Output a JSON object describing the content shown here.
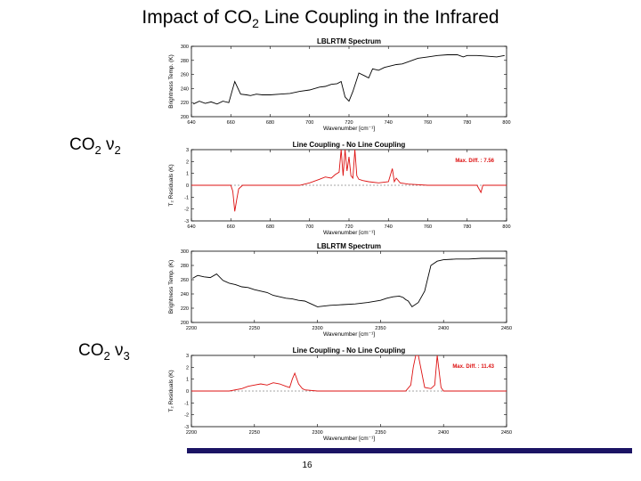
{
  "slide": {
    "title_main": "Impact of CO",
    "title_sub": "2",
    "title_rest": " Line Coupling in the Infrared",
    "label_nu2_main": "CO",
    "label_nu2_sub1": "2",
    "label_nu2_nu": " ν",
    "label_nu2_sub2": "2",
    "label_nu3_main": "CO",
    "label_nu3_sub1": "2",
    "label_nu3_nu": " ν",
    "label_nu3_sub2": "3",
    "page_number": "16"
  },
  "colors": {
    "spectrum": "#000000",
    "residual": "#dd1111",
    "zero_line": "#888888",
    "bar": "#1b1464"
  },
  "chart_data": [
    {
      "type": "line",
      "title": "LBLRTM Spectrum",
      "xlabel": "Wavenumber [cm⁻¹]",
      "ylabel": "Brightness Temp. (K)",
      "xlim": [
        640,
        800
      ],
      "ylim": [
        200,
        300
      ],
      "xticks": [
        640,
        660,
        680,
        700,
        720,
        740,
        760,
        780,
        800
      ],
      "yticks": [
        200,
        220,
        240,
        260,
        280,
        300
      ],
      "series": [
        {
          "x": [
            641,
            644,
            647,
            650,
            653,
            656,
            659,
            662,
            665,
            668,
            670,
            673,
            676,
            680,
            685,
            690,
            695,
            700,
            705,
            708,
            711,
            714,
            716,
            718,
            720,
            722,
            725,
            728,
            730,
            732,
            735,
            738,
            741,
            744,
            747,
            750,
            755,
            760,
            765,
            770,
            775,
            778,
            780,
            785,
            790,
            795,
            799
          ],
          "y": [
            218,
            222,
            219,
            221,
            218,
            222,
            220,
            250,
            232,
            231,
            230,
            232,
            231,
            231,
            232,
            233,
            236,
            238,
            242,
            243,
            246,
            247,
            250,
            228,
            222,
            236,
            262,
            258,
            255,
            268,
            266,
            270,
            272,
            274,
            275,
            278,
            283,
            285,
            287,
            288,
            288,
            285,
            287,
            287,
            286,
            285,
            287
          ]
        }
      ]
    },
    {
      "type": "line",
      "title": "Line Coupling - No Line Coupling",
      "xlabel": "Wavenumber [cm⁻¹]",
      "ylabel": "T₂ Residuals (K)",
      "xlim": [
        640,
        800
      ],
      "ylim": [
        -3,
        3
      ],
      "xticks": [
        640,
        660,
        680,
        700,
        720,
        740,
        760,
        780,
        800
      ],
      "yticks": [
        -3,
        -2,
        -1,
        0,
        1,
        2,
        3
      ],
      "annotation": "Max. Diff. : 7.56",
      "series": [
        {
          "x": [
            640,
            655,
            660,
            661,
            662,
            663,
            664,
            666,
            680,
            695,
            700,
            705,
            708,
            711,
            713,
            715,
            716,
            717,
            718,
            719,
            720,
            721,
            722,
            723,
            724,
            725,
            727,
            730,
            735,
            740,
            742,
            743,
            744,
            746,
            750,
            760,
            775,
            785,
            786,
            787,
            788,
            800
          ],
          "y": [
            0,
            0,
            0,
            -0.5,
            -2.2,
            -1.2,
            -0.3,
            0,
            0,
            0,
            0.2,
            0.5,
            0.7,
            0.6,
            0.9,
            1.1,
            3.0,
            0.8,
            3.0,
            1.2,
            2.4,
            0.8,
            0.6,
            3.0,
            0.8,
            0.5,
            0.4,
            0.3,
            0.2,
            0.3,
            1.4,
            0.3,
            0.6,
            0.2,
            0.1,
            0,
            0,
            0,
            -0.3,
            -0.6,
            0,
            0
          ]
        }
      ]
    },
    {
      "type": "line",
      "title": "LBLRTM Spectrum",
      "xlabel": "Wavenumber [cm⁻¹]",
      "ylabel": "Brightness Temp. (K)",
      "xlim": [
        2200,
        2450
      ],
      "ylim": [
        200,
        300
      ],
      "xticks": [
        2200,
        2250,
        2300,
        2350,
        2400,
        2450
      ],
      "yticks": [
        200,
        220,
        240,
        260,
        280,
        300
      ],
      "series": [
        {
          "x": [
            2201,
            2205,
            2210,
            2215,
            2220,
            2225,
            2230,
            2235,
            2240,
            2245,
            2250,
            2255,
            2260,
            2265,
            2270,
            2275,
            2280,
            2285,
            2290,
            2295,
            2300,
            2310,
            2320,
            2330,
            2340,
            2350,
            2355,
            2360,
            2365,
            2368,
            2370,
            2372,
            2375,
            2380,
            2385,
            2390,
            2395,
            2400,
            2410,
            2420,
            2430,
            2440,
            2449
          ],
          "y": [
            262,
            266,
            264,
            263,
            268,
            259,
            255,
            253,
            250,
            249,
            246,
            244,
            242,
            238,
            236,
            234,
            233,
            231,
            230,
            226,
            222,
            224,
            225,
            226,
            228,
            231,
            234,
            236,
            237,
            235,
            232,
            230,
            222,
            228,
            244,
            280,
            286,
            288,
            289,
            289,
            290,
            290,
            290
          ]
        }
      ]
    },
    {
      "type": "line",
      "title": "Line Coupling - No Line Coupling",
      "xlabel": "Wavenumber [cm⁻¹]",
      "ylabel": "T₂ Residuals (K)",
      "xlim": [
        2200,
        2450
      ],
      "ylim": [
        -3,
        3
      ],
      "xticks": [
        2200,
        2250,
        2300,
        2350,
        2400,
        2450
      ],
      "yticks": [
        -3,
        -2,
        -1,
        0,
        1,
        2,
        3
      ],
      "annotation": "Max. Diff. : 11.43",
      "series": [
        {
          "x": [
            2200,
            2230,
            2240,
            2245,
            2250,
            2255,
            2260,
            2265,
            2270,
            2275,
            2278,
            2280,
            2282,
            2285,
            2288,
            2290,
            2300,
            2350,
            2370,
            2374,
            2376,
            2378,
            2380,
            2385,
            2390,
            2393,
            2395,
            2398,
            2400,
            2450
          ],
          "y": [
            0,
            0,
            0.2,
            0.4,
            0.5,
            0.6,
            0.5,
            0.7,
            0.6,
            0.4,
            0.3,
            1.0,
            1.5,
            0.6,
            0.2,
            0.1,
            0,
            0,
            0,
            0.5,
            2.0,
            3.0,
            3.0,
            0.3,
            0.2,
            0.5,
            3.0,
            0.3,
            0,
            0
          ]
        }
      ]
    }
  ]
}
